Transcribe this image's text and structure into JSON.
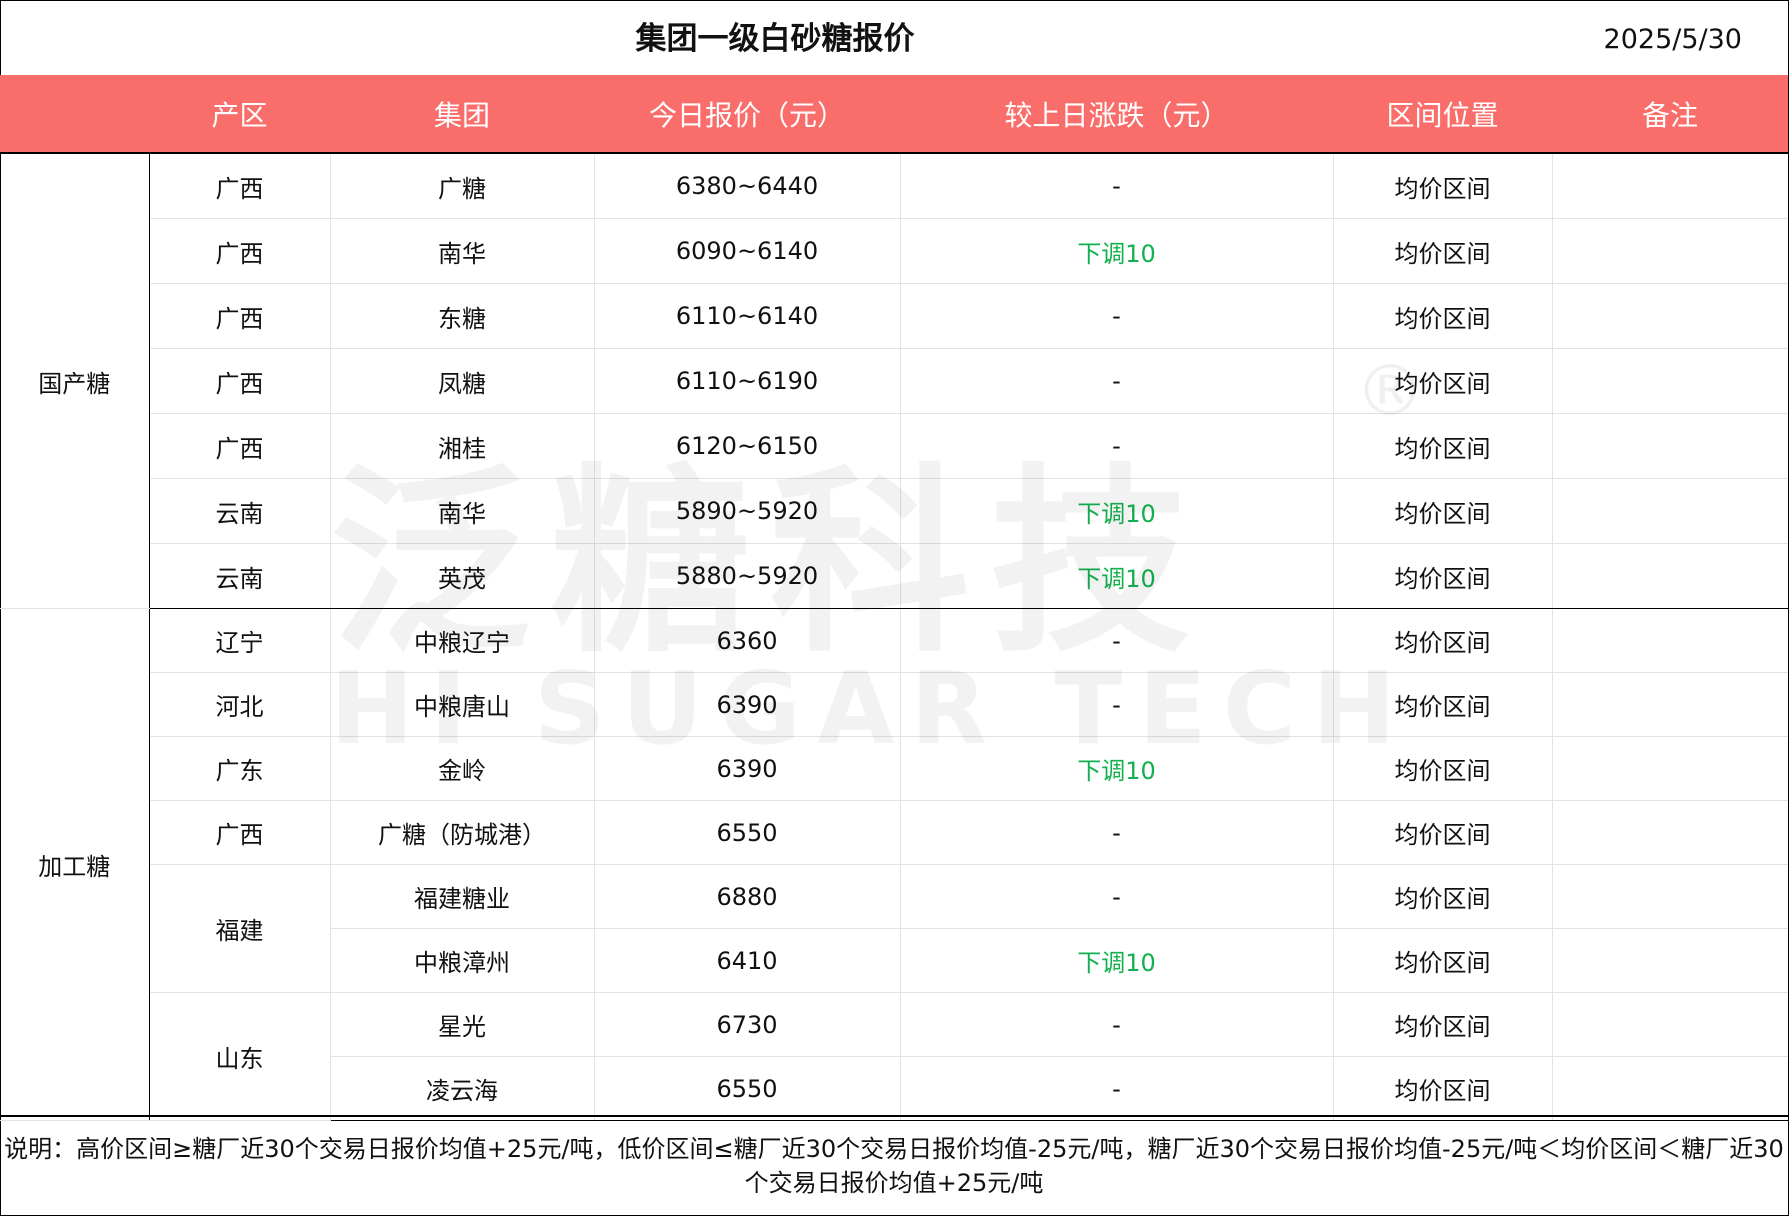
{
  "title": "集团一级白砂糖报价",
  "date": "2025/5/30",
  "colors": {
    "header_bg": "#f96e6b",
    "down": "#12b04e"
  },
  "columns": [
    "产区",
    "集团",
    "今日报价（元）",
    "较上日涨跌（元）",
    "区间位置",
    "备注"
  ],
  "groups": [
    {
      "category": "国产糖",
      "rows": [
        {
          "region": "广西",
          "group": "广糖",
          "price": "6380~6440",
          "change": "-",
          "position": "均价区间",
          "note": ""
        },
        {
          "region": "广西",
          "group": "南华",
          "price": "6090~6140",
          "change": "下调10",
          "position": "均价区间",
          "note": ""
        },
        {
          "region": "广西",
          "group": "东糖",
          "price": "6110~6140",
          "change": "-",
          "position": "均价区间",
          "note": ""
        },
        {
          "region": "广西",
          "group": "凤糖",
          "price": "6110~6190",
          "change": "-",
          "position": "均价区间",
          "note": ""
        },
        {
          "region": "广西",
          "group": "湘桂",
          "price": "6120~6150",
          "change": "-",
          "position": "均价区间",
          "note": ""
        },
        {
          "region": "云南",
          "group": "南华",
          "price": "5890~5920",
          "change": "下调10",
          "position": "均价区间",
          "note": ""
        },
        {
          "region": "云南",
          "group": "英茂",
          "price": "5880~5920",
          "change": "下调10",
          "position": "均价区间",
          "note": ""
        }
      ]
    },
    {
      "category": "加工糖",
      "rows": [
        {
          "region": "辽宁",
          "group": "中粮辽宁",
          "price": "6360",
          "change": "-",
          "position": "均价区间",
          "note": ""
        },
        {
          "region": "河北",
          "group": "中粮唐山",
          "price": "6390",
          "change": "-",
          "position": "均价区间",
          "note": ""
        },
        {
          "region": "广东",
          "group": "金岭",
          "price": "6390",
          "change": "下调10",
          "position": "均价区间",
          "note": ""
        },
        {
          "region": "广西",
          "group": "广糖（防城港）",
          "price": "6550",
          "change": "-",
          "position": "均价区间",
          "note": ""
        },
        {
          "region": "福建",
          "group": "福建糖业",
          "price": "6880",
          "change": "-",
          "position": "均价区间",
          "note": ""
        },
        {
          "region": "福建",
          "group": "中粮漳州",
          "price": "6410",
          "change": "下调10",
          "position": "均价区间",
          "note": ""
        },
        {
          "region": "山东",
          "group": "星光",
          "price": "6730",
          "change": "-",
          "position": "均价区间",
          "note": ""
        },
        {
          "region": "山东",
          "group": "凌云海",
          "price": "6550",
          "change": "-",
          "position": "均价区间",
          "note": ""
        }
      ]
    }
  ],
  "footnote": "说明：高价区间≥糖厂近30个交易日报价均值+25元/吨，低价区间≤糖厂近30个交易日报价均值-25元/吨，糖厂近30个交易日报价均值-25元/吨＜均价区间＜糖厂近30个交易日报价均值+25元/吨",
  "watermark": {
    "cn": "泛糖科技",
    "en": "HI SUGAR TECH",
    "mark": "®"
  }
}
